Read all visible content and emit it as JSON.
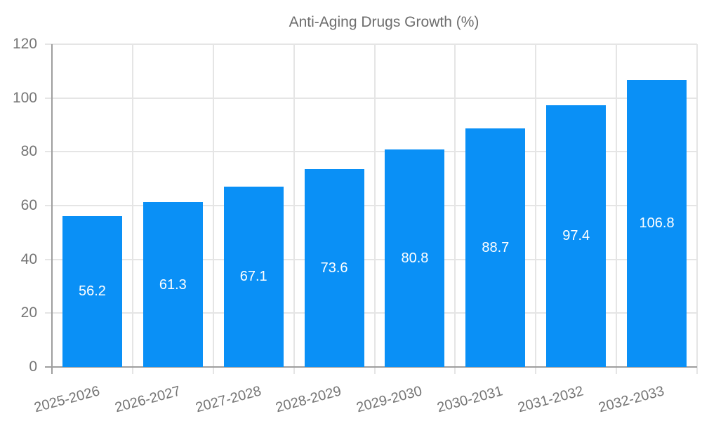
{
  "legend": {
    "label": "Anti-Aging Drugs Growth (%)"
  },
  "chart_data": {
    "type": "bar",
    "title": "",
    "series_name": "Anti-Aging Drugs Growth (%)",
    "categories": [
      "2025-2026",
      "2026-2027",
      "2027-2028",
      "2028-2029",
      "2029-2030",
      "2030-2031",
      "2031-2032",
      "2032-2033"
    ],
    "values": [
      56.2,
      61.3,
      67.1,
      73.6,
      80.8,
      88.7,
      97.4,
      106.8
    ],
    "value_labels": [
      "56.2",
      "61.3",
      "67.1",
      "73.6",
      "80.8",
      "88.7",
      "97.4",
      "106.8"
    ],
    "xlabel": "",
    "ylabel": "",
    "ylim": [
      0,
      120
    ],
    "ytick_step": 20,
    "ytick_labels": [
      "0",
      "20",
      "40",
      "60",
      "80",
      "100",
      "120"
    ],
    "grid": true,
    "legend_position": "top",
    "colors": {
      "bar": "#0a90f6",
      "grid": "#e5e5e5",
      "axis": "#9e9e9e",
      "tick_text": "#757575",
      "legend_text": "#6d6d6d",
      "value_label": "#ffffff",
      "background": "#ffffff"
    }
  }
}
